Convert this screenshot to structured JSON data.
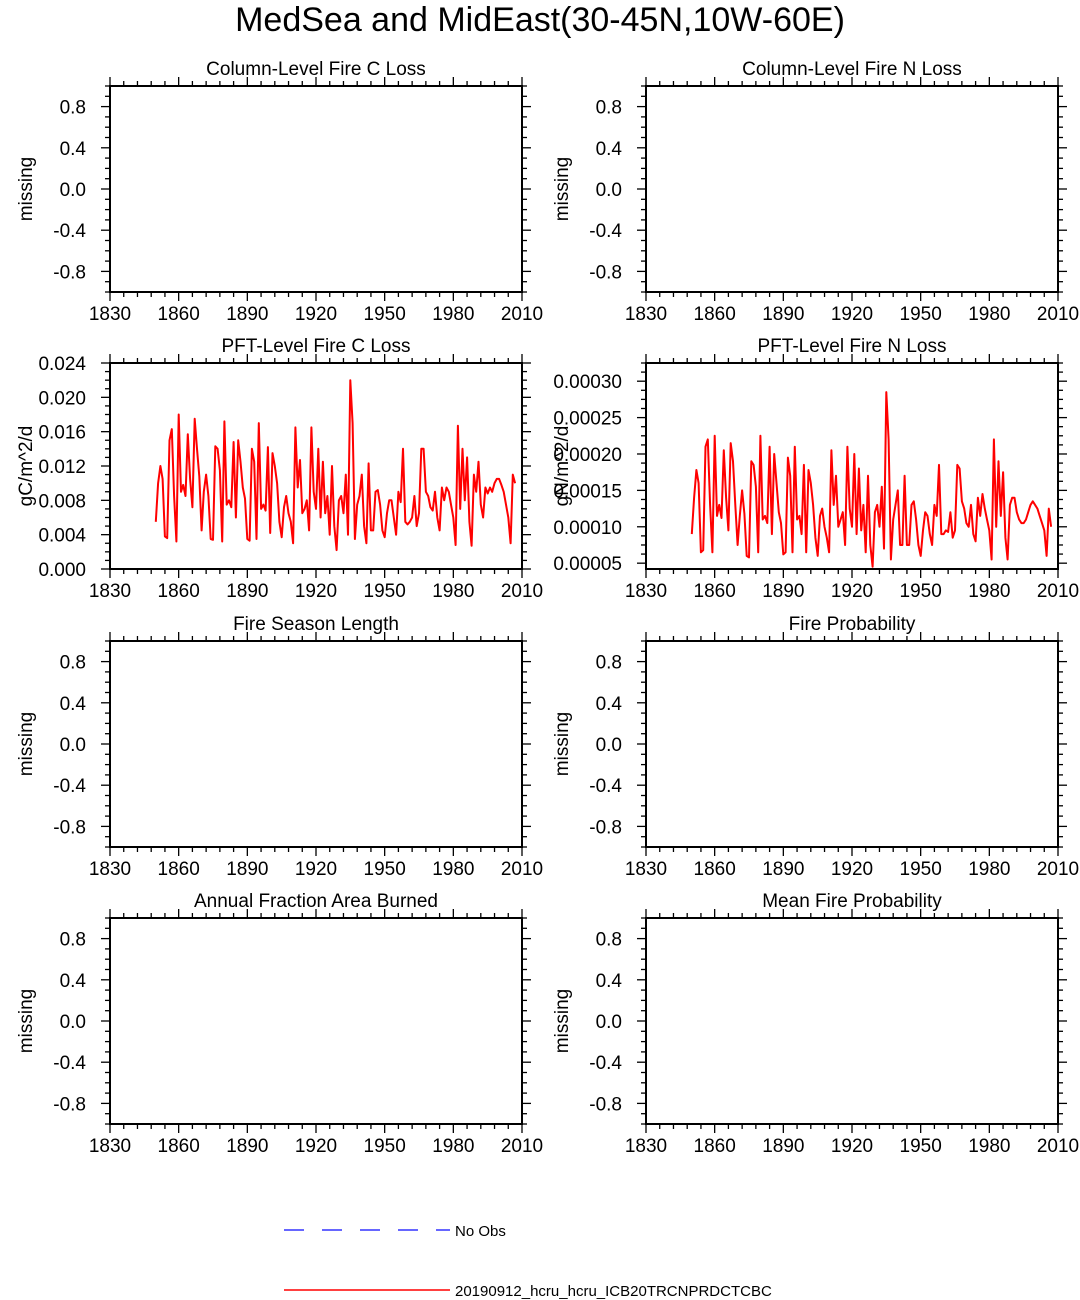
{
  "title": "MedSea and MidEast(30-45N,10W-60E)",
  "colors": {
    "series": "#ff0000",
    "no_obs": "#3333ff",
    "axis": "#000000"
  },
  "legend": {
    "no_obs_label": "No Obs",
    "model_label": "20190912_hcru_hcru_ICB20TRCNPRDCTCBC"
  },
  "chart_data": [
    {
      "type": "line",
      "title": "Column-Level Fire C Loss",
      "ylabel": "missing",
      "xlim": [
        1830,
        2010
      ],
      "ylim": [
        -1,
        1
      ],
      "xticks": [
        1830,
        1860,
        1890,
        1920,
        1950,
        1980,
        2010
      ],
      "yticks": [
        -0.8,
        -0.4,
        0.0,
        0.4,
        0.8
      ],
      "ytick_labels": [
        "-0.8",
        "-0.4",
        "0.0",
        "0.4",
        "0.8"
      ],
      "series": []
    },
    {
      "type": "line",
      "title": "Column-Level Fire N Loss",
      "ylabel": "missing",
      "xlim": [
        1830,
        2010
      ],
      "ylim": [
        -1,
        1
      ],
      "xticks": [
        1830,
        1860,
        1890,
        1920,
        1950,
        1980,
        2010
      ],
      "yticks": [
        -0.8,
        -0.4,
        0.0,
        0.4,
        0.8
      ],
      "ytick_labels": [
        "-0.8",
        "-0.4",
        "0.0",
        "0.4",
        "0.8"
      ],
      "series": []
    },
    {
      "type": "line",
      "title": "PFT-Level Fire C Loss",
      "ylabel": "gC/m^2/d",
      "xlim": [
        1830,
        2010
      ],
      "ylim": [
        0,
        0.024
      ],
      "xticks": [
        1830,
        1860,
        1890,
        1920,
        1950,
        1980,
        2010
      ],
      "yticks": [
        0.0,
        0.004,
        0.008,
        0.012,
        0.016,
        0.02,
        0.024
      ],
      "ytick_labels": [
        "0.000",
        "0.004",
        "0.008",
        "0.012",
        "0.016",
        "0.020",
        "0.024"
      ],
      "series": [
        {
          "name": "20190912_hcru_hcru_ICB20TRCNPRDCTCBC",
          "x_start": 1850,
          "values": [
            0.0055,
            0.01,
            0.012,
            0.0105,
            0.0038,
            0.0036,
            0.015,
            0.0163,
            0.0085,
            0.0032,
            0.018,
            0.009,
            0.0098,
            0.0085,
            0.0157,
            0.0105,
            0.0072,
            0.0175,
            0.014,
            0.0108,
            0.0045,
            0.009,
            0.011,
            0.0085,
            0.0035,
            0.0034,
            0.0143,
            0.014,
            0.0115,
            0.0032,
            0.0172,
            0.0075,
            0.008,
            0.0072,
            0.0148,
            0.006,
            0.015,
            0.0125,
            0.0095,
            0.0082,
            0.0035,
            0.0033,
            0.014,
            0.0125,
            0.0035,
            0.017,
            0.007,
            0.0075,
            0.0068,
            0.0142,
            0.0042,
            0.0135,
            0.012,
            0.01,
            0.0055,
            0.0037,
            0.0072,
            0.0085,
            0.0065,
            0.0055,
            0.003,
            0.0165,
            0.0095,
            0.0127,
            0.0065,
            0.007,
            0.008,
            0.0045,
            0.0165,
            0.009,
            0.007,
            0.014,
            0.006,
            0.0125,
            0.0065,
            0.0085,
            0.004,
            0.012,
            0.005,
            0.0022,
            0.008,
            0.0085,
            0.0065,
            0.011,
            0.004,
            0.022,
            0.017,
            0.0035,
            0.0075,
            0.0085,
            0.011,
            0.005,
            0.003,
            0.0123,
            0.0045,
            0.0045,
            0.009,
            0.0092,
            0.0075,
            0.0045,
            0.0037,
            0.0065,
            0.008,
            0.008,
            0.006,
            0.004,
            0.009,
            0.0078,
            0.014,
            0.0055,
            0.0052,
            0.0055,
            0.006,
            0.0085,
            0.005,
            0.0065,
            0.014,
            0.014,
            0.009,
            0.0085,
            0.0072,
            0.0068,
            0.009,
            0.006,
            0.0045,
            0.0095,
            0.008,
            0.0095,
            0.009,
            0.0075,
            0.006,
            0.0028,
            0.0167,
            0.007,
            0.014,
            0.008,
            0.013,
            0.0055,
            0.0027,
            0.011,
            0.009,
            0.0125,
            0.0075,
            0.006,
            0.0095,
            0.0088,
            0.0095,
            0.009,
            0.01,
            0.0105,
            0.0105,
            0.0098,
            0.009,
            0.0075,
            0.006,
            0.003,
            0.011,
            0.01
          ]
        }
      ]
    },
    {
      "type": "line",
      "title": "PFT-Level Fire N Loss",
      "ylabel": "gN/m^2/d",
      "xlim": [
        1830,
        2010
      ],
      "ylim": [
        4.2e-05,
        0.000325
      ],
      "xticks": [
        1830,
        1860,
        1890,
        1920,
        1950,
        1980,
        2010
      ],
      "yticks": [
        5e-05,
        0.0001,
        0.00015,
        0.0002,
        0.00025,
        0.0003
      ],
      "ytick_labels": [
        "0.00005",
        "0.00010",
        "0.00015",
        "0.00020",
        "0.00025",
        "0.00030"
      ],
      "series": [
        {
          "name": "20190912_hcru_hcru_ICB20TRCNPRDCTCBC",
          "x_start": 1850,
          "values": [
            9e-05,
            0.00014,
            0.000178,
            0.00016,
            6.5e-05,
            6.8e-05,
            0.00021,
            0.00022,
            0.00013,
            6.5e-05,
            0.000225,
            0.000115,
            0.00013,
            0.000112,
            0.000205,
            0.00014,
            9.5e-05,
            0.000215,
            0.00019,
            0.00013,
            7.5e-05,
            0.000115,
            0.00015,
            0.000118,
            6e-05,
            5.8e-05,
            0.00019,
            0.000185,
            0.000155,
            6.5e-05,
            0.000225,
            0.00011,
            0.000115,
            0.000105,
            0.00021,
            9e-05,
            0.0002,
            0.00016,
            0.00012,
            0.000105,
            6.2e-05,
            6.5e-05,
            0.000195,
            0.00017,
            6.5e-05,
            0.00021,
            0.00011,
            0.000115,
            9e-05,
            0.000185,
            6.5e-05,
            0.000178,
            0.00016,
            0.00013,
            8.5e-05,
            6e-05,
            0.000115,
            0.000125,
            0.0001,
            8.5e-05,
            6.5e-05,
            0.000205,
            0.00013,
            0.00017,
            0.0001,
            0.00011,
            0.00012,
            7.5e-05,
            0.00021,
            0.000125,
            0.0001,
            0.0002,
            9e-05,
            0.00018,
            9.5e-05,
            0.00013,
            6.5e-05,
            0.00017,
            7.5e-05,
            4.5e-05,
            0.00012,
            0.00013,
            0.0001,
            0.000155,
            7e-05,
            0.000285,
            0.00022,
            5.5e-05,
            0.00011,
            0.00013,
            0.00015,
            7.5e-05,
            7.5e-05,
            0.00017,
            7.5e-05,
            7.5e-05,
            0.00013,
            0.000135,
            0.00011,
            7.5e-05,
            6e-05,
            9.5e-05,
            0.00012,
            0.000115,
            9e-05,
            7.5e-05,
            0.00013,
            0.000115,
            0.000185,
            9e-05,
            9e-05,
            9.5e-05,
            9.3e-05,
            0.00012,
            8.5e-05,
            9.5e-05,
            0.000185,
            0.00018,
            0.000135,
            0.000125,
            0.000105,
            0.0001,
            0.00013,
            9e-05,
            8e-05,
            0.00014,
            0.000115,
            0.000145,
            0.000125,
            0.00011,
            9.5e-05,
            5.5e-05,
            0.00022,
            0.0001,
            0.00019,
            0.000115,
            0.000175,
            8.5e-05,
            5.5e-05,
            0.00013,
            0.00014,
            0.00014,
            0.00012,
            0.00011,
            0.000105,
            0.000105,
            0.00011,
            0.00012,
            0.00013,
            0.000135,
            0.00013,
            0.000125,
            0.000115,
            0.000105,
            9.5e-05,
            6e-05,
            0.000125,
            0.0001
          ]
        }
      ]
    },
    {
      "type": "line",
      "title": "Fire Season Length",
      "ylabel": "missing",
      "xlim": [
        1830,
        2010
      ],
      "ylim": [
        -1,
        1
      ],
      "xticks": [
        1830,
        1860,
        1890,
        1920,
        1950,
        1980,
        2010
      ],
      "yticks": [
        -0.8,
        -0.4,
        0.0,
        0.4,
        0.8
      ],
      "ytick_labels": [
        "-0.8",
        "-0.4",
        "0.0",
        "0.4",
        "0.8"
      ],
      "series": []
    },
    {
      "type": "line",
      "title": "Fire Probability",
      "ylabel": "missing",
      "xlim": [
        1830,
        2010
      ],
      "ylim": [
        -1,
        1
      ],
      "xticks": [
        1830,
        1860,
        1890,
        1920,
        1950,
        1980,
        2010
      ],
      "yticks": [
        -0.8,
        -0.4,
        0.0,
        0.4,
        0.8
      ],
      "ytick_labels": [
        "-0.8",
        "-0.4",
        "0.0",
        "0.4",
        "0.8"
      ],
      "series": []
    },
    {
      "type": "line",
      "title": "Annual Fraction Area Burned",
      "ylabel": "missing",
      "xlim": [
        1830,
        2010
      ],
      "ylim": [
        -1,
        1
      ],
      "xticks": [
        1830,
        1860,
        1890,
        1920,
        1950,
        1980,
        2010
      ],
      "yticks": [
        -0.8,
        -0.4,
        0.0,
        0.4,
        0.8
      ],
      "ytick_labels": [
        "-0.8",
        "-0.4",
        "0.0",
        "0.4",
        "0.8"
      ],
      "series": []
    },
    {
      "type": "line",
      "title": "Mean Fire Probability",
      "ylabel": "missing",
      "xlim": [
        1830,
        2010
      ],
      "ylim": [
        -1,
        1
      ],
      "xticks": [
        1830,
        1860,
        1890,
        1920,
        1950,
        1980,
        2010
      ],
      "yticks": [
        -0.8,
        -0.4,
        0.0,
        0.4,
        0.8
      ],
      "ytick_labels": [
        "-0.8",
        "-0.4",
        "0.0",
        "0.4",
        "0.8"
      ],
      "series": []
    }
  ]
}
